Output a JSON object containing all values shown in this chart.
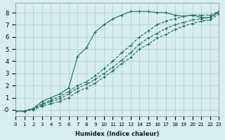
{
  "xlabel": "Humidex (Indice chaleur)",
  "ylabel": "",
  "bg_color": "#d6eeed",
  "grid_color": "#b0cccb",
  "line_color": "#1a6b5e",
  "xlim": [
    0,
    23
  ],
  "ylim": [
    -0.5,
    8.8
  ],
  "xticks": [
    0,
    1,
    2,
    3,
    4,
    5,
    6,
    7,
    8,
    9,
    10,
    11,
    12,
    13,
    14,
    15,
    16,
    17,
    18,
    19,
    20,
    21,
    22,
    23
  ],
  "yticks": [
    0,
    1,
    2,
    3,
    4,
    5,
    6,
    7,
    8
  ],
  "lines": [
    {
      "x": [
        0,
        1,
        2,
        3,
        4,
        5,
        6,
        7,
        8,
        9,
        10,
        11,
        12,
        13,
        14,
        15,
        16,
        17,
        18,
        19,
        20,
        21,
        22,
        23
      ],
      "y": [
        -0.1,
        -0.1,
        0.1,
        0.7,
        1.0,
        1.3,
        1.8,
        4.4,
        5.1,
        6.4,
        7.0,
        7.5,
        7.8,
        8.1,
        8.1,
        8.1,
        8.0,
        8.0,
        7.8,
        7.7,
        7.8,
        7.6,
        7.6,
        8.1
      ]
    },
    {
      "x": [
        0,
        1,
        2,
        3,
        4,
        5,
        6,
        7,
        8,
        9,
        10,
        11,
        12,
        13,
        14,
        15,
        16,
        17,
        18,
        19,
        20,
        21,
        22,
        23
      ],
      "y": [
        -0.1,
        -0.1,
        0.1,
        0.5,
        0.8,
        1.1,
        1.5,
        2.0,
        2.3,
        2.8,
        3.4,
        4.0,
        4.7,
        5.3,
        6.0,
        6.5,
        7.0,
        7.3,
        7.5,
        7.7,
        7.8,
        7.8,
        7.8,
        8.1
      ]
    },
    {
      "x": [
        0,
        1,
        2,
        3,
        4,
        5,
        6,
        7,
        8,
        9,
        10,
        11,
        12,
        13,
        14,
        15,
        16,
        17,
        18,
        19,
        20,
        21,
        22,
        23
      ],
      "y": [
        -0.1,
        -0.1,
        0.05,
        0.4,
        0.7,
        0.9,
        1.3,
        1.8,
        2.1,
        2.5,
        3.0,
        3.5,
        4.1,
        4.7,
        5.4,
        5.9,
        6.3,
        6.7,
        7.0,
        7.2,
        7.4,
        7.5,
        7.6,
        8.0
      ]
    },
    {
      "x": [
        0,
        1,
        2,
        3,
        4,
        5,
        6,
        7,
        8,
        9,
        10,
        11,
        12,
        13,
        14,
        15,
        16,
        17,
        18,
        19,
        20,
        21,
        22,
        23
      ],
      "y": [
        -0.1,
        -0.1,
        0.0,
        0.3,
        0.5,
        0.7,
        1.0,
        1.5,
        1.8,
        2.2,
        2.7,
        3.2,
        3.8,
        4.3,
        5.0,
        5.4,
        5.9,
        6.2,
        6.6,
        6.9,
        7.1,
        7.3,
        7.4,
        7.9
      ]
    }
  ]
}
